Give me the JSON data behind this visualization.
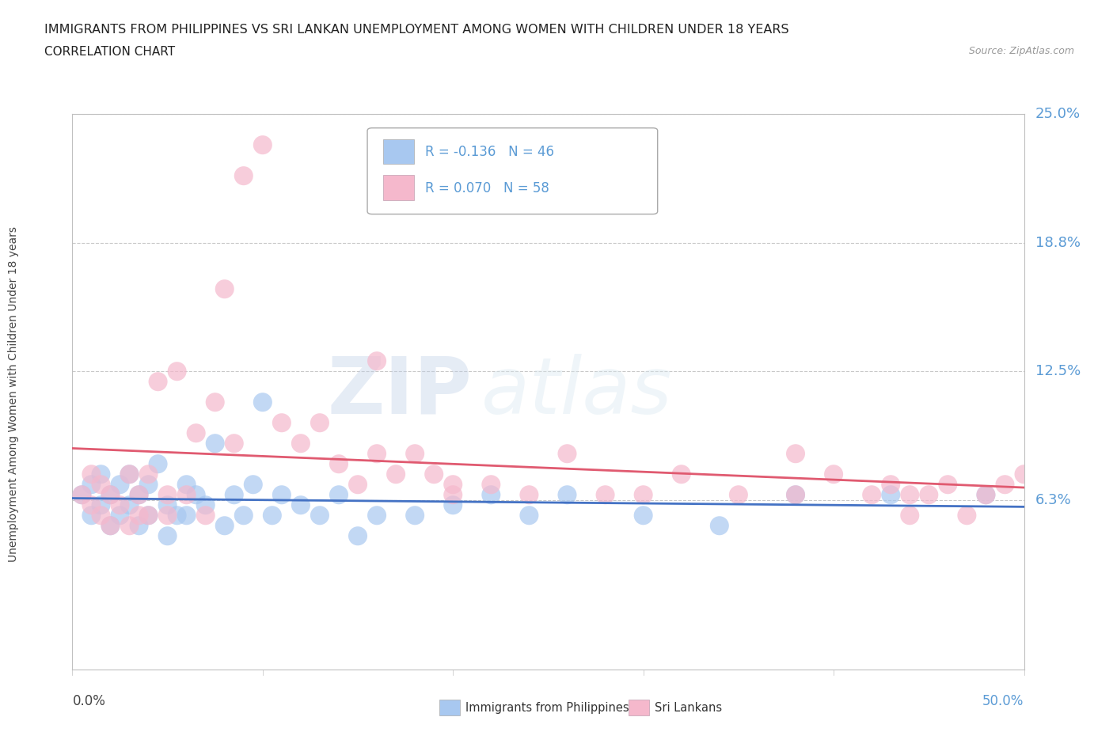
{
  "title": "IMMIGRANTS FROM PHILIPPINES VS SRI LANKAN UNEMPLOYMENT AMONG WOMEN WITH CHILDREN UNDER 18 YEARS",
  "subtitle": "CORRELATION CHART",
  "source": "Source: ZipAtlas.com",
  "ylabel": "Unemployment Among Women with Children Under 18 years",
  "yticks": [
    0.0,
    0.0625,
    0.125,
    0.1875,
    0.25
  ],
  "ytick_labels": [
    "",
    "6.3%",
    "12.5%",
    "18.8%",
    "25.0%"
  ],
  "xmin": 0.0,
  "xmax": 0.5,
  "ymin": -0.02,
  "ymax": 0.25,
  "legend_r1": "R = -0.136   N = 46",
  "legend_r2": "R = 0.070   N = 58",
  "color_philippines": "#a8c8f0",
  "color_srilanka": "#f5b8cc",
  "color_trend_philippines": "#4472c4",
  "color_trend_srilanka": "#e05a70",
  "color_ytick": "#5b9bd5",
  "watermark_zip": "ZIP",
  "watermark_atlas": "atlas",
  "philippines_x": [
    0.005,
    0.01,
    0.01,
    0.015,
    0.015,
    0.02,
    0.02,
    0.025,
    0.025,
    0.03,
    0.03,
    0.035,
    0.035,
    0.04,
    0.04,
    0.045,
    0.05,
    0.05,
    0.055,
    0.06,
    0.06,
    0.065,
    0.07,
    0.075,
    0.08,
    0.085,
    0.09,
    0.095,
    0.1,
    0.105,
    0.11,
    0.12,
    0.13,
    0.14,
    0.15,
    0.16,
    0.18,
    0.2,
    0.22,
    0.24,
    0.26,
    0.3,
    0.34,
    0.38,
    0.43,
    0.48
  ],
  "philippines_y": [
    0.065,
    0.055,
    0.07,
    0.06,
    0.075,
    0.05,
    0.065,
    0.055,
    0.07,
    0.06,
    0.075,
    0.05,
    0.065,
    0.055,
    0.07,
    0.08,
    0.045,
    0.06,
    0.055,
    0.07,
    0.055,
    0.065,
    0.06,
    0.09,
    0.05,
    0.065,
    0.055,
    0.07,
    0.11,
    0.055,
    0.065,
    0.06,
    0.055,
    0.065,
    0.045,
    0.055,
    0.055,
    0.06,
    0.065,
    0.055,
    0.065,
    0.055,
    0.05,
    0.065,
    0.065,
    0.065
  ],
  "srilanka_x": [
    0.005,
    0.01,
    0.01,
    0.015,
    0.015,
    0.02,
    0.02,
    0.025,
    0.03,
    0.03,
    0.035,
    0.035,
    0.04,
    0.04,
    0.045,
    0.05,
    0.05,
    0.055,
    0.06,
    0.065,
    0.07,
    0.075,
    0.08,
    0.085,
    0.09,
    0.1,
    0.11,
    0.12,
    0.13,
    0.14,
    0.15,
    0.16,
    0.17,
    0.18,
    0.19,
    0.2,
    0.22,
    0.24,
    0.26,
    0.28,
    0.3,
    0.32,
    0.35,
    0.38,
    0.4,
    0.42,
    0.43,
    0.44,
    0.45,
    0.46,
    0.47,
    0.48,
    0.49,
    0.5,
    0.38,
    0.44,
    0.16,
    0.2
  ],
  "srilanka_y": [
    0.065,
    0.06,
    0.075,
    0.055,
    0.07,
    0.05,
    0.065,
    0.06,
    0.05,
    0.075,
    0.055,
    0.065,
    0.055,
    0.075,
    0.12,
    0.055,
    0.065,
    0.125,
    0.065,
    0.095,
    0.055,
    0.11,
    0.165,
    0.09,
    0.22,
    0.235,
    0.1,
    0.09,
    0.1,
    0.08,
    0.07,
    0.085,
    0.075,
    0.085,
    0.075,
    0.065,
    0.07,
    0.065,
    0.085,
    0.065,
    0.065,
    0.075,
    0.065,
    0.065,
    0.075,
    0.065,
    0.07,
    0.065,
    0.065,
    0.07,
    0.055,
    0.065,
    0.07,
    0.075,
    0.085,
    0.055,
    0.13,
    0.07
  ]
}
